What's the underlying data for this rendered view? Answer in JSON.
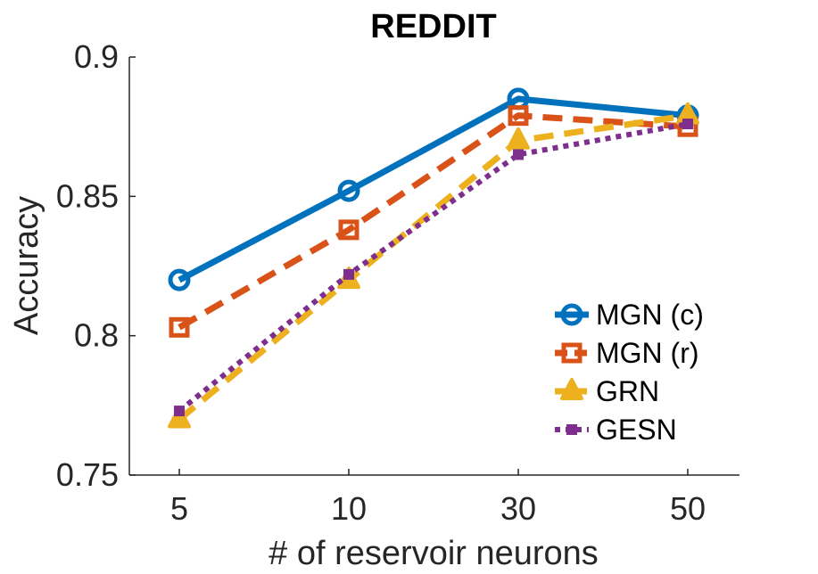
{
  "chart_data": {
    "type": "line",
    "title": "REDDIT",
    "xlabel": "# of reservoir neurons",
    "ylabel": "Accuracy",
    "categories": [
      "5",
      "10",
      "30",
      "50"
    ],
    "ylim": [
      0.75,
      0.9
    ],
    "yticks": [
      "0.75",
      "0.8",
      "0.85",
      "0.9"
    ],
    "legend_position": "lower-right",
    "series": [
      {
        "name": "MGN (c)",
        "values": [
          0.82,
          0.852,
          0.885,
          0.879
        ],
        "color": "#0072bd",
        "line": "solid",
        "marker": "circle"
      },
      {
        "name": "MGN (r)",
        "values": [
          0.803,
          0.838,
          0.879,
          0.875
        ],
        "color": "#d95319",
        "line": "dashed",
        "marker": "square"
      },
      {
        "name": "GRN",
        "values": [
          0.77,
          0.82,
          0.87,
          0.879
        ],
        "color": "#edb120",
        "line": "dashed",
        "marker": "triangle"
      },
      {
        "name": "GESN",
        "values": [
          0.773,
          0.822,
          0.865,
          0.876
        ],
        "color": "#7e2f8e",
        "line": "dotted",
        "marker": "square-small"
      }
    ]
  }
}
